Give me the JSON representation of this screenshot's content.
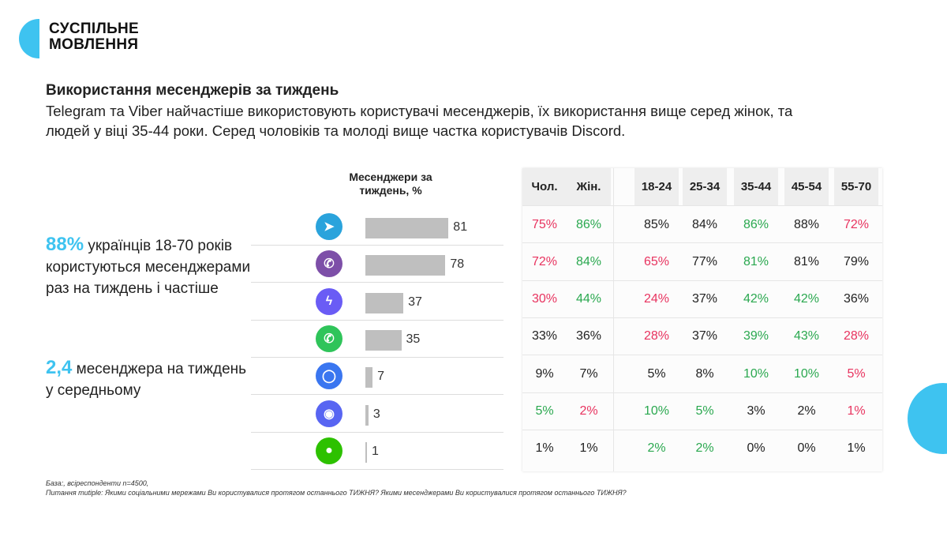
{
  "logo": {
    "line1": "СУСПІЛЬНЕ",
    "line2": "МОВЛЕННЯ"
  },
  "title": "Використання месенджерів за тиждень",
  "subtitle": "Telegram та Viber найчастіше використовують користувачі месенджерів, їх використання вище серед жінок, та людей у віці 35-44 роки. Серед чоловіків та молоді вище частка користувачів Discord.",
  "stat1": {
    "value": "88%",
    "text": " українців 18-70 років користуються месенджерами раз на тиждень і частіше"
  },
  "stat2": {
    "value": "2,4",
    "text": " месенджера на тиждень у середньому"
  },
  "colors": {
    "accent": "#3ec3f0",
    "high": "#2aa84f",
    "low": "#e8335f",
    "neutral": "#222222"
  },
  "chart_data": {
    "type": "bar",
    "title": "Месенджери за тиждень, %",
    "categories": [
      "Telegram",
      "Viber",
      "Messenger",
      "WhatsApp",
      "Signal",
      "Discord",
      "WeChat"
    ],
    "icons": [
      "telegram-icon",
      "viber-icon",
      "messenger-icon",
      "whatsapp-icon",
      "signal-icon",
      "discord-icon",
      "wechat-icon"
    ],
    "values": [
      81,
      78,
      37,
      35,
      7,
      3,
      1
    ],
    "table": {
      "columns": [
        "Чол.",
        "Жін.",
        "18-24",
        "25-34",
        "35-44",
        "45-54",
        "55-70"
      ],
      "rows": [
        [
          [
            "75%",
            "low"
          ],
          [
            "86%",
            "high"
          ],
          [
            "85%",
            "n"
          ],
          [
            "84%",
            "n"
          ],
          [
            "86%",
            "high"
          ],
          [
            "88%",
            "n"
          ],
          [
            "72%",
            "low"
          ]
        ],
        [
          [
            "72%",
            "low"
          ],
          [
            "84%",
            "high"
          ],
          [
            "65%",
            "low"
          ],
          [
            "77%",
            "n"
          ],
          [
            "81%",
            "high"
          ],
          [
            "81%",
            "n"
          ],
          [
            "79%",
            "n"
          ]
        ],
        [
          [
            "30%",
            "low"
          ],
          [
            "44%",
            "high"
          ],
          [
            "24%",
            "low"
          ],
          [
            "37%",
            "n"
          ],
          [
            "42%",
            "high"
          ],
          [
            "42%",
            "high"
          ],
          [
            "36%",
            "n"
          ]
        ],
        [
          [
            "33%",
            "n"
          ],
          [
            "36%",
            "n"
          ],
          [
            "28%",
            "low"
          ],
          [
            "37%",
            "n"
          ],
          [
            "39%",
            "high"
          ],
          [
            "43%",
            "high"
          ],
          [
            "28%",
            "low"
          ]
        ],
        [
          [
            "9%",
            "n"
          ],
          [
            "7%",
            "n"
          ],
          [
            "5%",
            "n"
          ],
          [
            "8%",
            "n"
          ],
          [
            "10%",
            "high"
          ],
          [
            "10%",
            "high"
          ],
          [
            "5%",
            "low"
          ]
        ],
        [
          [
            "5%",
            "high"
          ],
          [
            "2%",
            "low"
          ],
          [
            "10%",
            "high"
          ],
          [
            "5%",
            "high"
          ],
          [
            "3%",
            "n"
          ],
          [
            "2%",
            "n"
          ],
          [
            "1%",
            "low"
          ]
        ],
        [
          [
            "1%",
            "n"
          ],
          [
            "1%",
            "n"
          ],
          [
            "2%",
            "high"
          ],
          [
            "2%",
            "high"
          ],
          [
            "0%",
            "n"
          ],
          [
            "0%",
            "n"
          ],
          [
            "1%",
            "n"
          ]
        ]
      ]
    }
  },
  "footnote": {
    "line1": "База:, всіреспонденти n=4500,",
    "line2": "Питання mutiple: Якими соціальними мережами Ви користувалися протягом останнього ТИЖНЯ? Якими месенджерами Ви користувалися протягом останнього ТИЖНЯ?"
  }
}
